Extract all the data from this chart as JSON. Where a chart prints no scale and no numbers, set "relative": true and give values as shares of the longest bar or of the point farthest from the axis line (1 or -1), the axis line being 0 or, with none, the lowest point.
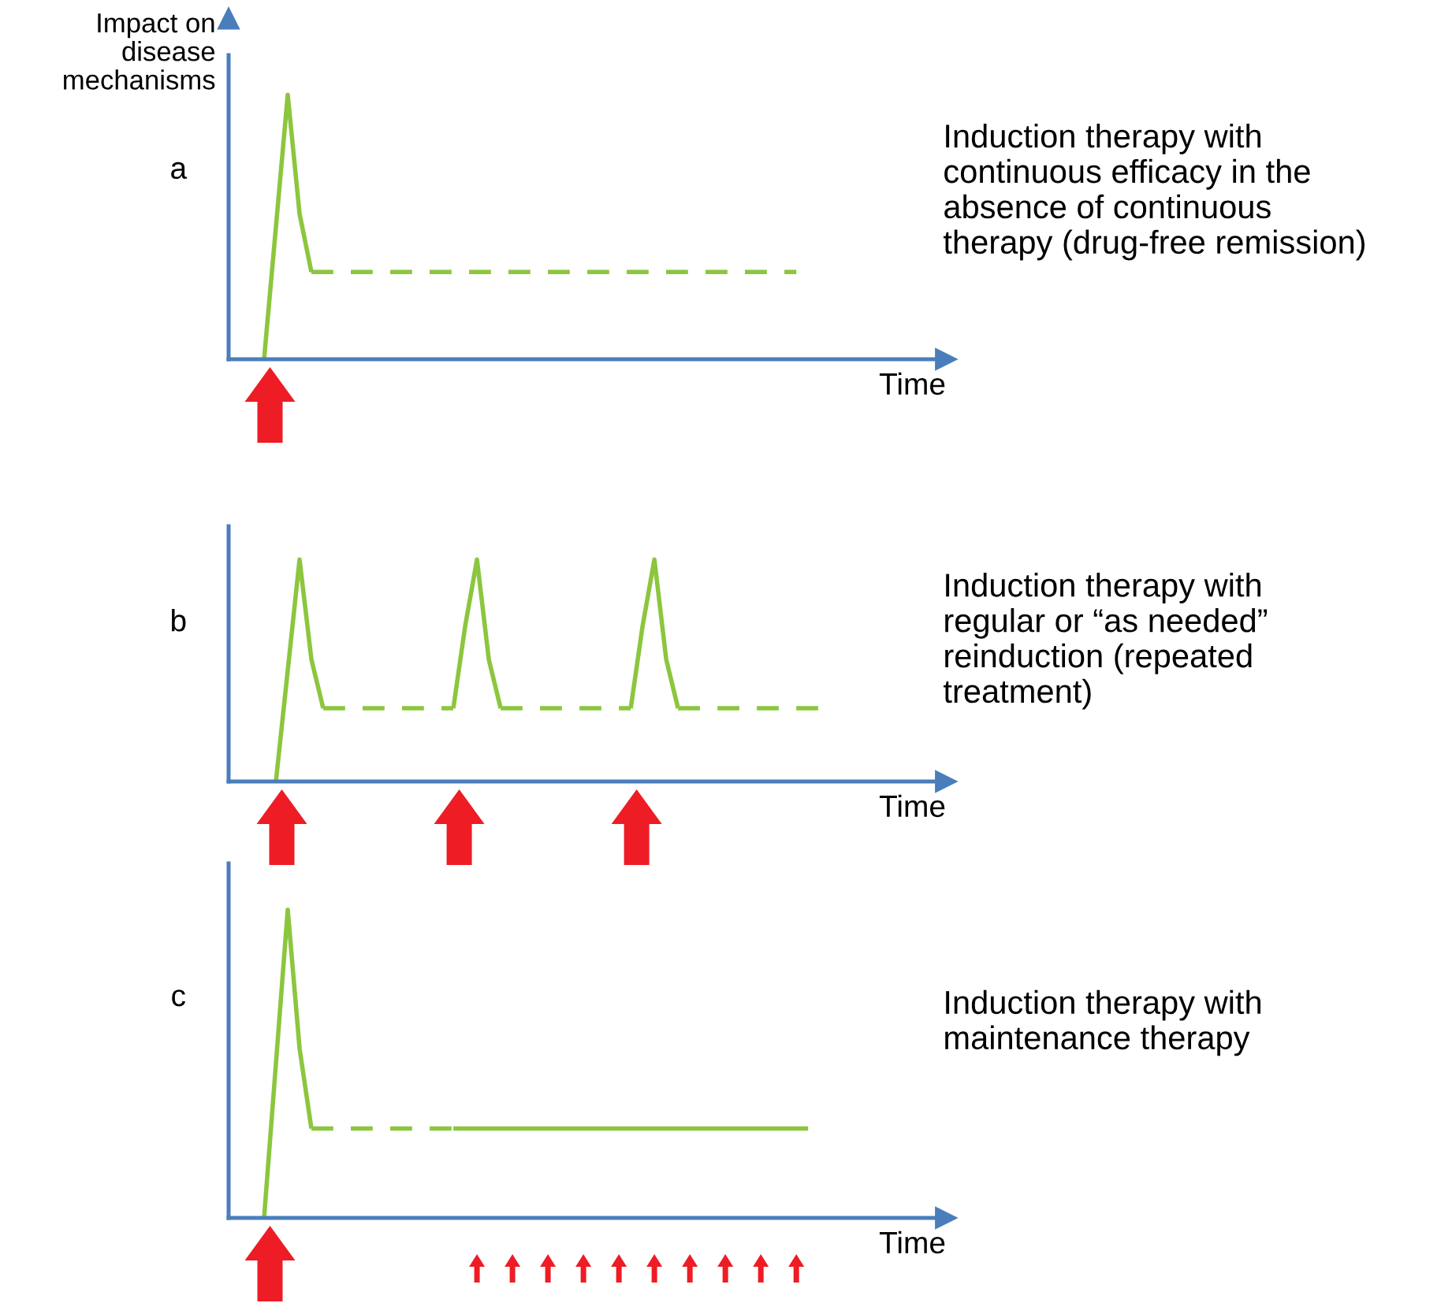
{
  "chart_data": [
    {
      "type": "line",
      "relative": true,
      "tick_labels": false,
      "legend": false,
      "xlabel": "Time",
      "ylabel": "Impact on\ndisease\nmechanisms",
      "categories": [
        null,
        null,
        null,
        null,
        null,
        null,
        null,
        null,
        null,
        null,
        null,
        null,
        null,
        null,
        null,
        null,
        null,
        null,
        null,
        null,
        null,
        null,
        null,
        null,
        null,
        null,
        null,
        null,
        null,
        null,
        null,
        null,
        null,
        null,
        null,
        null,
        null,
        null,
        null,
        null,
        null,
        null,
        null,
        null,
        null,
        null,
        null,
        null,
        null,
        null,
        null
      ],
      "annotations": [
        "a",
        "Induction therapy with\ncontinuous efficacy in the\nabsence of continuous\ntherapy (drug-free remission)"
      ],
      "series": [
        {
          "color": "#8cc63e",
          "line_style": "solid",
          "values": [
            null,
            null,
            null,
            0,
            0.5,
            1,
            0.55,
            0.33,
            null,
            null,
            null,
            null,
            null,
            null,
            null,
            null,
            null,
            null,
            null,
            null,
            null,
            null,
            null,
            null,
            null,
            null,
            null,
            null,
            null,
            null,
            null,
            null,
            null,
            null,
            null,
            null,
            null,
            null,
            null,
            null,
            null,
            null,
            null,
            null,
            null,
            null,
            null,
            null,
            null,
            null,
            null
          ]
        },
        {
          "color": "#8cc63e",
          "line_style": "dashed",
          "values": [
            null,
            null,
            null,
            null,
            null,
            null,
            null,
            0.33,
            0.33,
            0.33,
            0.33,
            0.33,
            0.33,
            0.33,
            0.33,
            0.33,
            0.33,
            0.33,
            0.33,
            0.33,
            0.33,
            0.33,
            0.33,
            0.33,
            0.33,
            0.33,
            0.33,
            0.33,
            0.33,
            0.33,
            0.33,
            0.33,
            0.33,
            0.33,
            0.33,
            0.33,
            0.33,
            0.33,
            0.33,
            0.33,
            0.33,
            0.33,
            0.33,
            0.33,
            0.33,
            0.33,
            0.33,
            0.33,
            0.33,
            null,
            null
          ]
        }
      ]
    },
    {
      "type": "line",
      "relative": true,
      "tick_labels": false,
      "legend": false,
      "xlabel": "Time",
      "categories": [
        null,
        null,
        null,
        null,
        null,
        null,
        null,
        null,
        null,
        null,
        null,
        null,
        null,
        null,
        null,
        null,
        null,
        null,
        null,
        null,
        null,
        null,
        null,
        null,
        null,
        null,
        null,
        null,
        null,
        null,
        null,
        null,
        null,
        null,
        null,
        null,
        null,
        null,
        null,
        null,
        null,
        null,
        null,
        null,
        null,
        null,
        null,
        null,
        null,
        null,
        null
      ],
      "annotations": [
        "b",
        "Induction therapy with\nregular or “as needed”\nreinduction (repeated\ntreatment)"
      ],
      "series": [
        {
          "color": "#8cc63e",
          "line_style": "solid",
          "values": [
            null,
            null,
            null,
            null,
            0,
            0.5,
            1,
            0.55,
            0.33,
            null,
            null,
            null,
            null,
            null,
            null,
            null,
            null,
            null,
            null,
            null,
            null,
            null,
            null,
            null,
            null,
            null,
            null,
            null,
            null,
            null,
            null,
            null,
            null,
            null,
            null,
            null,
            null,
            null,
            null,
            null,
            null,
            null,
            null,
            null,
            null,
            null,
            null,
            null,
            null,
            null,
            null
          ]
        },
        {
          "color": "#8cc63e",
          "line_style": "dashed",
          "values": [
            null,
            null,
            null,
            null,
            null,
            null,
            null,
            null,
            0.33,
            0.33,
            0.33,
            0.33,
            0.33,
            0.33,
            0.33,
            0.33,
            0.33,
            0.33,
            0.33,
            0.33,
            null,
            null,
            null,
            null,
            null,
            null,
            null,
            null,
            null,
            null,
            null,
            null,
            null,
            null,
            null,
            null,
            null,
            null,
            null,
            null,
            null,
            null,
            null,
            null,
            null,
            null,
            null,
            null,
            null,
            null,
            null
          ]
        },
        {
          "color": "#8cc63e",
          "line_style": "solid",
          "values": [
            null,
            null,
            null,
            null,
            null,
            null,
            null,
            null,
            null,
            null,
            null,
            null,
            null,
            null,
            null,
            null,
            null,
            null,
            null,
            0.33,
            0.7,
            1,
            0.55,
            0.33,
            null,
            null,
            null,
            null,
            null,
            null,
            null,
            null,
            null,
            null,
            null,
            null,
            null,
            null,
            null,
            null,
            null,
            null,
            null,
            null,
            null,
            null,
            null,
            null,
            null,
            null,
            null
          ]
        },
        {
          "color": "#8cc63e",
          "line_style": "dashed",
          "values": [
            null,
            null,
            null,
            null,
            null,
            null,
            null,
            null,
            null,
            null,
            null,
            null,
            null,
            null,
            null,
            null,
            null,
            null,
            null,
            null,
            null,
            null,
            null,
            0.33,
            0.33,
            0.33,
            0.33,
            0.33,
            0.33,
            0.33,
            0.33,
            0.33,
            0.33,
            0.33,
            0.33,
            null,
            null,
            null,
            null,
            null,
            null,
            null,
            null,
            null,
            null,
            null,
            null,
            null,
            null,
            null,
            null
          ]
        },
        {
          "color": "#8cc63e",
          "line_style": "solid",
          "values": [
            null,
            null,
            null,
            null,
            null,
            null,
            null,
            null,
            null,
            null,
            null,
            null,
            null,
            null,
            null,
            null,
            null,
            null,
            null,
            null,
            null,
            null,
            null,
            null,
            null,
            null,
            null,
            null,
            null,
            null,
            null,
            null,
            null,
            null,
            0.33,
            0.7,
            1,
            0.55,
            0.33,
            null,
            null,
            null,
            null,
            null,
            null,
            null,
            null,
            null,
            null,
            null,
            null
          ]
        },
        {
          "color": "#8cc63e",
          "line_style": "dashed",
          "values": [
            null,
            null,
            null,
            null,
            null,
            null,
            null,
            null,
            null,
            null,
            null,
            null,
            null,
            null,
            null,
            null,
            null,
            null,
            null,
            null,
            null,
            null,
            null,
            null,
            null,
            null,
            null,
            null,
            null,
            null,
            null,
            null,
            null,
            null,
            null,
            null,
            null,
            null,
            0.33,
            0.33,
            0.33,
            0.33,
            0.33,
            0.33,
            0.33,
            0.33,
            0.33,
            0.33,
            0.33,
            0.33,
            0.33
          ]
        }
      ]
    },
    {
      "type": "line",
      "relative": true,
      "tick_labels": false,
      "legend": false,
      "xlabel": "Time",
      "categories": [
        null,
        null,
        null,
        null,
        null,
        null,
        null,
        null,
        null,
        null,
        null,
        null,
        null,
        null,
        null,
        null,
        null,
        null,
        null,
        null,
        null,
        null,
        null,
        null,
        null,
        null,
        null,
        null,
        null,
        null,
        null,
        null,
        null,
        null,
        null,
        null,
        null,
        null,
        null,
        null,
        null,
        null,
        null,
        null,
        null,
        null,
        null,
        null,
        null,
        null,
        null
      ],
      "annotations": [
        "c",
        "Induction therapy with\nmaintenance therapy"
      ],
      "series": [
        {
          "color": "#8cc63e",
          "line_style": "solid",
          "values": [
            null,
            null,
            null,
            0,
            0.5,
            1,
            0.55,
            0.29,
            null,
            null,
            null,
            null,
            null,
            null,
            null,
            null,
            null,
            null,
            null,
            null,
            null,
            null,
            null,
            null,
            null,
            null,
            null,
            null,
            null,
            null,
            null,
            null,
            null,
            null,
            null,
            null,
            null,
            null,
            null,
            null,
            null,
            null,
            null,
            null,
            null,
            null,
            null,
            null,
            null,
            null,
            null
          ]
        },
        {
          "color": "#8cc63e",
          "line_style": "dashed",
          "values": [
            null,
            null,
            null,
            null,
            null,
            null,
            null,
            0.29,
            0.29,
            0.29,
            0.29,
            0.29,
            0.29,
            0.29,
            0.29,
            0.29,
            0.29,
            0.29,
            0.29,
            0.29,
            null,
            null,
            null,
            null,
            null,
            null,
            null,
            null,
            null,
            null,
            null,
            null,
            null,
            null,
            null,
            null,
            null,
            null,
            null,
            null,
            null,
            null,
            null,
            null,
            null,
            null,
            null,
            null,
            null,
            null,
            null
          ]
        },
        {
          "color": "#8cc63e",
          "line_style": "solid",
          "values": [
            null,
            null,
            null,
            null,
            null,
            null,
            null,
            null,
            null,
            null,
            null,
            null,
            null,
            null,
            null,
            null,
            null,
            null,
            null,
            0.29,
            0.29,
            0.29,
            0.29,
            0.29,
            0.29,
            0.29,
            0.29,
            0.29,
            0.29,
            0.29,
            0.29,
            0.29,
            0.29,
            0.29,
            0.29,
            0.29,
            0.29,
            0.29,
            0.29,
            0.29,
            0.29,
            0.29,
            0.29,
            0.29,
            0.29,
            0.29,
            0.29,
            0.29,
            0.29,
            0.29,
            null
          ]
        }
      ]
    }
  ]
}
